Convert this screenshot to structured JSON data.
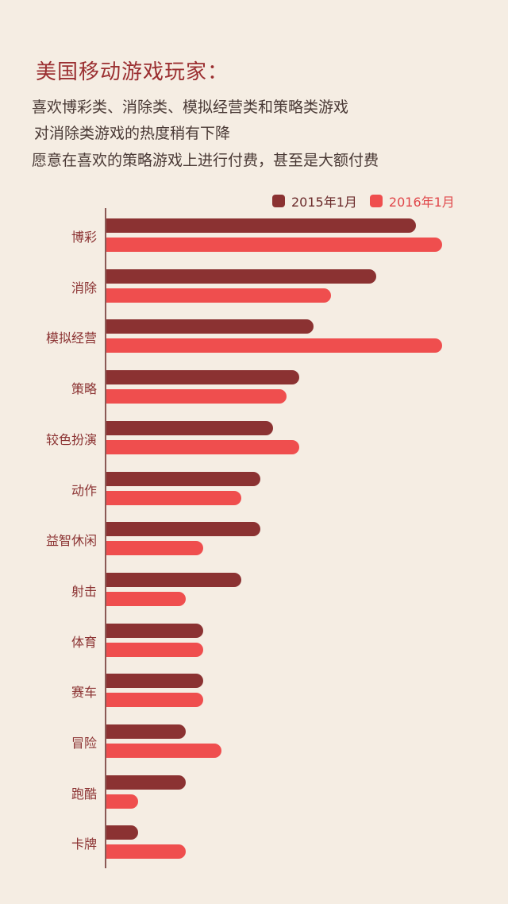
{
  "title": "美国移动游戏玩家：",
  "lines": [
    "喜欢博彩类、消除类、模拟经营类和策略类游戏",
    "对消除类游戏的热度稍有下降",
    "愿意在喜欢的策略游戏上进行付费，甚至是大额付费"
  ],
  "colors": {
    "background": "#f5ede3",
    "series_2015": "#8b3232",
    "series_2016": "#ef4e4e",
    "title": "#9b2f31"
  },
  "legend": [
    {
      "label": "2015年1月",
      "color": "#8b3232"
    },
    {
      "label": "2016年1月",
      "color": "#ef4e4e"
    }
  ],
  "chart_data": {
    "type": "bar",
    "orientation": "horizontal",
    "title": "",
    "xlabel": "",
    "ylabel": "",
    "grid": false,
    "legend_position": "top-right",
    "note": "No value axis shown; values are relative bar lengths (px from axis).",
    "categories": [
      "博彩",
      "消除",
      "模拟经营",
      "策略",
      "较色扮演",
      "动作",
      "益智休闲",
      "射击",
      "体育",
      "赛车",
      "冒险",
      "跑酷",
      "卡牌"
    ],
    "series": [
      {
        "name": "2015年1月",
        "values": [
          390,
          340,
          261,
          243,
          210,
          194,
          194,
          170,
          122,
          122,
          100,
          100,
          40
        ]
      },
      {
        "name": "2016年1月",
        "values": [
          423,
          283,
          423,
          227,
          243,
          170,
          122,
          100,
          122,
          122,
          145,
          40,
          100
        ]
      }
    ],
    "xlim": [
      0,
      423
    ]
  }
}
